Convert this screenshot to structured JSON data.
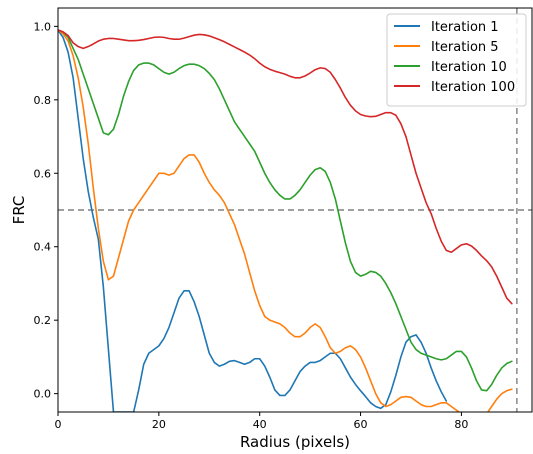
{
  "chart_data": {
    "type": "line",
    "title": "",
    "xlabel": "Radius (pixels)",
    "ylabel": "FRC",
    "xlim": [
      0,
      94
    ],
    "ylim": [
      -0.05,
      1.05
    ],
    "xticks": [
      0,
      20,
      40,
      60,
      80
    ],
    "yticks": [
      0.0,
      0.2,
      0.4,
      0.6,
      0.8,
      1.0
    ],
    "xtick_labels": [
      "0",
      "20",
      "40",
      "60",
      "80"
    ],
    "ytick_labels": [
      "0.0",
      "0.2",
      "0.4",
      "0.6",
      "0.8",
      "1.0"
    ],
    "grid": false,
    "legend_position": "top-right",
    "reference_lines": {
      "horizontal_y": 0.5,
      "vertical_x": 91,
      "style": "dashed",
      "color": "#808080"
    },
    "series": [
      {
        "name": "Iteration 1",
        "color": "#1f77b4",
        "x": [
          0,
          1,
          2,
          3,
          4,
          5,
          6,
          7,
          8,
          9,
          10,
          11,
          15,
          16,
          17,
          18,
          20,
          21,
          22,
          23,
          24,
          25,
          26,
          27,
          28,
          29,
          30,
          31,
          32,
          33,
          34,
          35,
          36,
          37,
          38,
          39,
          40,
          41,
          42,
          43,
          44,
          45,
          46,
          47,
          48,
          49,
          50,
          51,
          52,
          53,
          54,
          55,
          56,
          57,
          58,
          59,
          60,
          61,
          62,
          63,
          64,
          65,
          66,
          67,
          68,
          69,
          70,
          71,
          72,
          73,
          74,
          75,
          76,
          77
        ],
        "y": [
          0.99,
          0.97,
          0.93,
          0.86,
          0.75,
          0.64,
          0.55,
          0.48,
          0.42,
          0.29,
          0.12,
          -0.05,
          -0.05,
          0.01,
          0.08,
          0.11,
          0.13,
          0.15,
          0.18,
          0.22,
          0.26,
          0.28,
          0.28,
          0.25,
          0.21,
          0.16,
          0.11,
          0.085,
          0.075,
          0.08,
          0.088,
          0.09,
          0.085,
          0.08,
          0.085,
          0.095,
          0.095,
          0.075,
          0.045,
          0.01,
          -0.005,
          -0.005,
          0.01,
          0.035,
          0.06,
          0.075,
          0.085,
          0.085,
          0.09,
          0.1,
          0.11,
          0.11,
          0.095,
          0.07,
          0.045,
          0.025,
          0.008,
          -0.008,
          -0.025,
          -0.035,
          -0.04,
          -0.03,
          0.005,
          0.05,
          0.1,
          0.14,
          0.155,
          0.16,
          0.14,
          0.11,
          0.07,
          0.035,
          0.005,
          -0.02
        ]
      },
      {
        "name": "Iteration 5",
        "color": "#ff7f0e",
        "x": [
          0,
          1,
          2,
          3,
          4,
          5,
          6,
          7,
          8,
          9,
          10,
          11,
          12,
          13,
          14,
          15,
          16,
          17,
          18,
          19,
          20,
          21,
          22,
          23,
          24,
          25,
          26,
          27,
          28,
          29,
          30,
          31,
          32,
          33,
          34,
          35,
          36,
          37,
          38,
          39,
          40,
          41,
          42,
          43,
          44,
          45,
          46,
          47,
          48,
          49,
          50,
          51,
          52,
          53,
          54,
          55,
          56,
          57,
          58,
          59,
          60,
          61,
          62,
          63,
          64,
          65,
          66,
          67,
          68,
          69,
          70,
          71,
          72,
          73,
          74,
          75,
          76,
          77,
          78,
          79,
          80,
          85,
          86,
          87,
          88,
          89,
          90
        ],
        "y": [
          0.99,
          0.98,
          0.96,
          0.92,
          0.86,
          0.78,
          0.68,
          0.56,
          0.45,
          0.36,
          0.31,
          0.32,
          0.37,
          0.42,
          0.47,
          0.5,
          0.52,
          0.54,
          0.56,
          0.58,
          0.6,
          0.6,
          0.595,
          0.6,
          0.62,
          0.64,
          0.65,
          0.65,
          0.63,
          0.6,
          0.575,
          0.555,
          0.54,
          0.52,
          0.49,
          0.46,
          0.42,
          0.38,
          0.33,
          0.28,
          0.24,
          0.21,
          0.2,
          0.195,
          0.19,
          0.18,
          0.165,
          0.155,
          0.155,
          0.165,
          0.18,
          0.19,
          0.18,
          0.155,
          0.125,
          0.11,
          0.115,
          0.125,
          0.13,
          0.12,
          0.1,
          0.07,
          0.035,
          0.0,
          -0.025,
          -0.035,
          -0.03,
          -0.02,
          -0.01,
          -0.008,
          -0.01,
          -0.02,
          -0.03,
          -0.035,
          -0.035,
          -0.03,
          -0.025,
          -0.025,
          -0.035,
          -0.045,
          -0.055,
          -0.055,
          -0.035,
          -0.015,
          0.0,
          0.008,
          0.012
        ]
      },
      {
        "name": "Iteration 10",
        "color": "#2ca02c",
        "x": [
          0,
          1,
          2,
          3,
          4,
          5,
          6,
          7,
          8,
          9,
          10,
          11,
          12,
          13,
          14,
          15,
          16,
          17,
          18,
          19,
          20,
          21,
          22,
          23,
          24,
          25,
          26,
          27,
          28,
          29,
          30,
          31,
          32,
          33,
          34,
          35,
          36,
          37,
          38,
          39,
          40,
          41,
          42,
          43,
          44,
          45,
          46,
          47,
          48,
          49,
          50,
          51,
          52,
          53,
          54,
          55,
          56,
          57,
          58,
          59,
          60,
          61,
          62,
          63,
          64,
          65,
          66,
          67,
          68,
          69,
          70,
          71,
          72,
          73,
          74,
          75,
          76,
          77,
          78,
          79,
          80,
          81,
          82,
          83,
          84,
          85,
          86,
          87,
          88,
          89,
          90
        ],
        "y": [
          0.99,
          0.985,
          0.97,
          0.94,
          0.91,
          0.87,
          0.83,
          0.79,
          0.75,
          0.71,
          0.705,
          0.72,
          0.76,
          0.81,
          0.85,
          0.88,
          0.895,
          0.9,
          0.9,
          0.895,
          0.885,
          0.875,
          0.87,
          0.875,
          0.885,
          0.893,
          0.897,
          0.897,
          0.893,
          0.885,
          0.872,
          0.855,
          0.83,
          0.8,
          0.77,
          0.74,
          0.72,
          0.7,
          0.68,
          0.66,
          0.63,
          0.6,
          0.575,
          0.555,
          0.54,
          0.53,
          0.53,
          0.54,
          0.555,
          0.575,
          0.595,
          0.61,
          0.615,
          0.605,
          0.575,
          0.53,
          0.47,
          0.41,
          0.36,
          0.33,
          0.32,
          0.325,
          0.333,
          0.33,
          0.32,
          0.3,
          0.275,
          0.245,
          0.21,
          0.175,
          0.14,
          0.12,
          0.11,
          0.105,
          0.1,
          0.095,
          0.092,
          0.095,
          0.105,
          0.115,
          0.115,
          0.1,
          0.07,
          0.035,
          0.01,
          0.008,
          0.025,
          0.05,
          0.07,
          0.082,
          0.088
        ]
      },
      {
        "name": "Iteration 100",
        "color": "#d62728",
        "x": [
          0,
          1,
          2,
          3,
          4,
          5,
          6,
          7,
          8,
          9,
          10,
          11,
          12,
          13,
          14,
          15,
          16,
          17,
          18,
          19,
          20,
          21,
          22,
          23,
          24,
          25,
          26,
          27,
          28,
          29,
          30,
          31,
          32,
          33,
          34,
          35,
          36,
          37,
          38,
          39,
          40,
          41,
          42,
          43,
          44,
          45,
          46,
          47,
          48,
          49,
          50,
          51,
          52,
          53,
          54,
          55,
          56,
          57,
          58,
          59,
          60,
          61,
          62,
          63,
          64,
          65,
          66,
          67,
          68,
          69,
          70,
          71,
          72,
          73,
          74,
          75,
          76,
          77,
          78,
          79,
          80,
          81,
          82,
          83,
          84,
          85,
          86,
          87,
          88,
          89,
          90
        ],
        "y": [
          0.99,
          0.985,
          0.975,
          0.955,
          0.945,
          0.94,
          0.945,
          0.952,
          0.96,
          0.965,
          0.967,
          0.967,
          0.965,
          0.963,
          0.961,
          0.961,
          0.962,
          0.964,
          0.967,
          0.97,
          0.971,
          0.97,
          0.967,
          0.965,
          0.965,
          0.968,
          0.972,
          0.976,
          0.978,
          0.977,
          0.974,
          0.969,
          0.964,
          0.958,
          0.951,
          0.944,
          0.937,
          0.93,
          0.922,
          0.912,
          0.9,
          0.89,
          0.883,
          0.878,
          0.874,
          0.87,
          0.864,
          0.86,
          0.86,
          0.865,
          0.873,
          0.882,
          0.887,
          0.885,
          0.875,
          0.855,
          0.832,
          0.806,
          0.785,
          0.77,
          0.76,
          0.756,
          0.754,
          0.755,
          0.76,
          0.765,
          0.765,
          0.758,
          0.735,
          0.7,
          0.65,
          0.6,
          0.56,
          0.52,
          0.49,
          0.45,
          0.415,
          0.39,
          0.385,
          0.395,
          0.405,
          0.408,
          0.402,
          0.39,
          0.375,
          0.362,
          0.345,
          0.32,
          0.29,
          0.26,
          0.245
        ]
      }
    ]
  }
}
